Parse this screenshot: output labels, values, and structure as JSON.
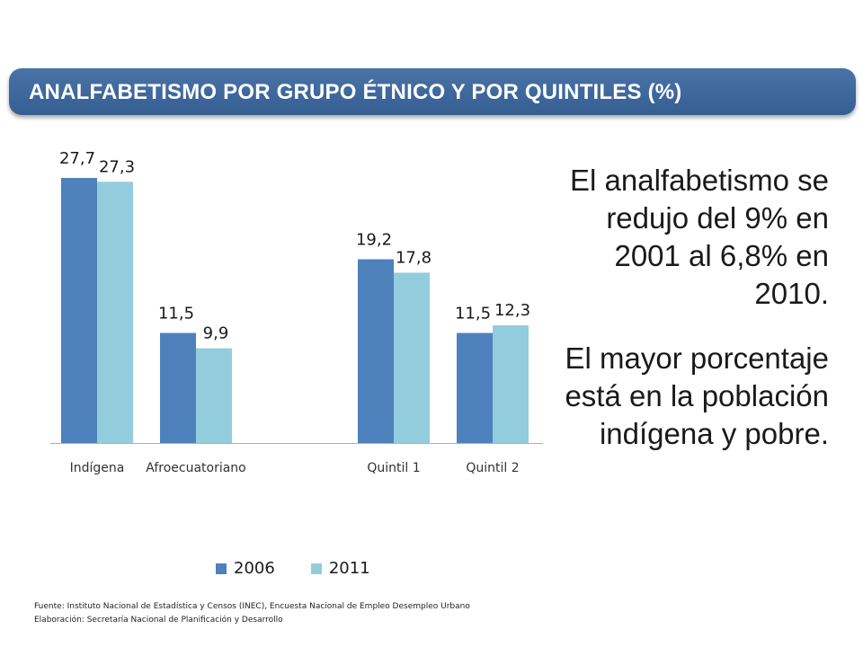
{
  "title": "ANALFABETISMO POR GRUPO ÉTNICO Y POR QUINTILES (%)",
  "commentary": {
    "paragraph1": "El analfabetismo se redujo del 9% en 2001 al 6,8% en 2010.",
    "paragraph2": "El mayor porcentaje está en la población indígena  y pobre."
  },
  "footer": {
    "source": "Fuente: Instituto Nacional de Estadística y Censos  (INEC), Encuesta Nacional  de Empleo Desempleo Urbano",
    "prepared_by": "Elaboración: Secretaría Nacional de Planificación y Desarrollo"
  },
  "colors": {
    "banner": "#3f6a9e",
    "series_2006": "#4f81bd",
    "series_2011": "#93cddd"
  },
  "chart_data": {
    "type": "bar",
    "categories": [
      "Indígena",
      "Afroecuatoriano",
      "",
      "Quintil 1",
      "Quintil 2"
    ],
    "series": [
      {
        "name": "2006",
        "values": [
          27.7,
          11.5,
          null,
          19.2,
          11.5
        ],
        "labels": [
          "27,7",
          "11,5",
          "",
          "19,2",
          "11,5"
        ],
        "color": "#4f81bd"
      },
      {
        "name": "2011",
        "values": [
          27.3,
          9.9,
          null,
          17.8,
          12.3
        ],
        "labels": [
          "27,3",
          "9,9",
          "",
          "17,8",
          "12,3"
        ],
        "color": "#93cddd"
      }
    ],
    "ylim": [
      0,
      27.7
    ],
    "legend": "bottom",
    "grid": false
  }
}
